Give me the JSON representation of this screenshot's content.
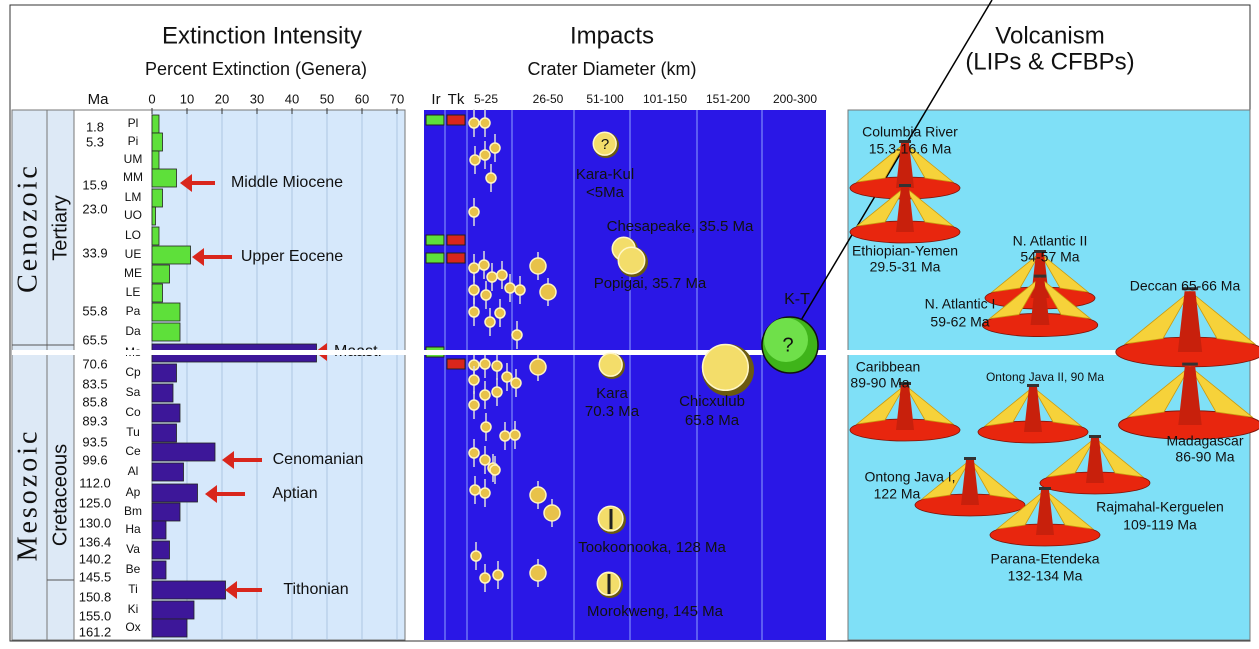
{
  "timescale": {
    "ma_label": "Ma",
    "eras": [
      "Cenozoic",
      "Mesozoic"
    ],
    "periods": [
      "Tertiary",
      "Cretaceous"
    ],
    "ages": [
      "1.8",
      "5.3",
      "15.9",
      "23.0",
      "33.9",
      "55.8",
      "65.5",
      "70.6",
      "83.5",
      "85.8",
      "89.3",
      "93.5",
      "99.6",
      "112.0",
      "125.0",
      "130.0",
      "136.4",
      "140.2",
      "145.5",
      "150.8",
      "155.0",
      "161.2"
    ]
  },
  "extinction": {
    "title": "Extinction Intensity",
    "subtitle": "Percent Extinction (Genera)",
    "xlim": [
      0,
      70
    ],
    "xticks": [
      0,
      10,
      20,
      30,
      40,
      50,
      60,
      70
    ],
    "stages": [
      "Pl",
      "Pi",
      "UM",
      "MM",
      "LM",
      "UO",
      "LO",
      "UE",
      "ME",
      "LE",
      "Pa",
      "Da",
      "Ms",
      "Cp",
      "Sa",
      "Co",
      "Tu",
      "Ce",
      "Al",
      "Ap",
      "Bm",
      "Ha",
      "Va",
      "Be",
      "Ti",
      "Ki",
      "Ox"
    ],
    "values": [
      2,
      3,
      2,
      7,
      3,
      1,
      2,
      11,
      5,
      3,
      8,
      8,
      47,
      7,
      6,
      8,
      7,
      18,
      9,
      13,
      8,
      4,
      5,
      4,
      21,
      12,
      10
    ],
    "annotations": [
      "Middle Miocene",
      "Upper Eocene",
      "Maast.",
      "Cenomanian",
      "Aptian",
      "Tithonian"
    ]
  },
  "impacts": {
    "title": "Impacts",
    "subtitle": "Crater Diameter (km)",
    "columns": [
      "Ir",
      "Tk",
      "5-25",
      "26-50",
      "51-100",
      "101-150",
      "151-200",
      "200-300"
    ],
    "unknown": "?",
    "boundary": "K-T",
    "craters": [
      [
        "Kara-Kul",
        "<5Ma"
      ],
      [
        "Chesapeake, 35.5 Ma"
      ],
      [
        "Popigai, 35.7 Ma"
      ],
      [
        "Kara",
        "70.3 Ma"
      ],
      [
        "Chicxulub",
        "65.8 Ma"
      ],
      [
        "Tookoonooka, 128 Ma"
      ],
      [
        "Morokweng, 145 Ma"
      ]
    ]
  },
  "volcanism": {
    "title": "Volcanism",
    "subtitle": "(LIPs & CFBPs)",
    "provinces": [
      [
        "Columbia River",
        "15.3-16.6 Ma"
      ],
      [
        "Ethiopian-Yemen",
        "29.5-31 Ma"
      ],
      [
        "N. Atlantic II",
        "54-57 Ma"
      ],
      [
        "N. Atlantic I",
        "59-62 Ma"
      ],
      [
        "Deccan 65-66 Ma"
      ],
      [
        "Caribbean",
        "89-90 Ma"
      ],
      [
        "Ontong Java II, 90 Ma"
      ],
      [
        "Madagascar",
        "86-90 Ma"
      ],
      [
        "Ontong Java I,",
        "122 Ma"
      ],
      [
        "Rajmahal-Kerguelen",
        "109-119 Ma"
      ],
      [
        "Parana-Etendeka",
        "132-134 Ma"
      ]
    ]
  }
}
